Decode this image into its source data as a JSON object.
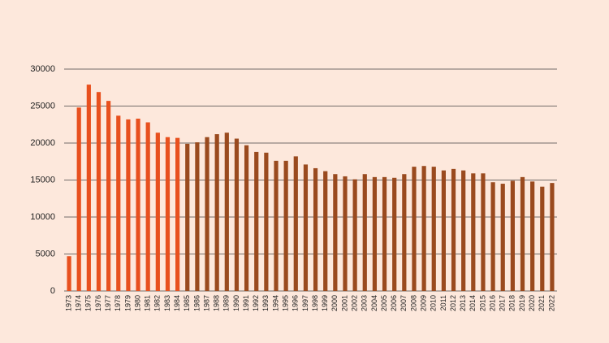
{
  "chart_data": {
    "type": "bar",
    "categories": [
      "1973",
      "1974",
      "1975",
      "1976",
      "1977",
      "1978",
      "1979",
      "1980",
      "1981",
      "1982",
      "1983",
      "1984",
      "1985",
      "1986",
      "1987",
      "1988",
      "1989",
      "1990",
      "1991",
      "1992",
      "1993",
      "1994",
      "1995",
      "1996",
      "1997",
      "1998",
      "1999",
      "2000",
      "2001",
      "2002",
      "2003",
      "2004",
      "2005",
      "2006",
      "2007",
      "2008",
      "2009",
      "2010",
      "2011",
      "2012",
      "2013",
      "2014",
      "2015",
      "2016",
      "2017",
      "2018",
      "2019",
      "2020",
      "2021",
      "2022"
    ],
    "values": [
      4700,
      24800,
      27900,
      26900,
      25700,
      23700,
      23200,
      23300,
      22800,
      21400,
      20800,
      20700,
      19900,
      20100,
      20800,
      21200,
      21400,
      20600,
      19700,
      18800,
      18700,
      17600,
      17600,
      18200,
      17100,
      16600,
      16200,
      15800,
      15500,
      15100,
      15800,
      15400,
      15400,
      15300,
      15800,
      16800,
      16900,
      16800,
      16300,
      16500,
      16300,
      15900,
      15900,
      14700,
      14500,
      14900,
      15400,
      14800,
      14100,
      14600
    ],
    "colors": [
      "#e8501e",
      "#e8501e",
      "#e8501e",
      "#e8501e",
      "#e8501e",
      "#e8501e",
      "#e8501e",
      "#e8501e",
      "#e8501e",
      "#e8501e",
      "#e8501e",
      "#e8501e",
      "#9a4a1e",
      "#9a4a1e",
      "#9a4a1e",
      "#9a4a1e",
      "#9a4a1e",
      "#9a4a1e",
      "#9a4a1e",
      "#9a4a1e",
      "#9a4a1e",
      "#9a4a1e",
      "#9a4a1e",
      "#9a4a1e",
      "#9a4a1e",
      "#9a4a1e",
      "#9a4a1e",
      "#9a4a1e",
      "#9a4a1e",
      "#9a4a1e",
      "#9a4a1e",
      "#9a4a1e",
      "#9a4a1e",
      "#9a4a1e",
      "#9a4a1e",
      "#9a4a1e",
      "#9a4a1e",
      "#9a4a1e",
      "#9a4a1e",
      "#9a4a1e",
      "#9a4a1e",
      "#9a4a1e",
      "#9a4a1e",
      "#9a4a1e",
      "#9a4a1e",
      "#9a4a1e",
      "#9a4a1e",
      "#9a4a1e",
      "#9a4a1e",
      "#9a4a1e"
    ],
    "ylim": [
      0,
      30000
    ],
    "yticks": [
      0,
      5000,
      10000,
      15000,
      20000,
      25000,
      30000
    ],
    "grid": true
  }
}
